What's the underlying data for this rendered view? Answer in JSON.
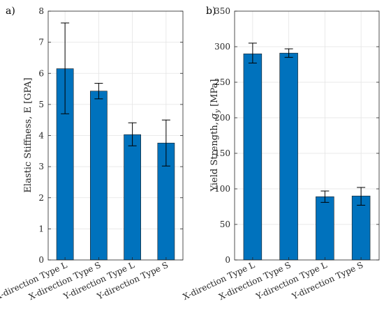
{
  "chart_data": [
    {
      "type": "bar",
      "panel_label": "a)",
      "categories": [
        "X-direction Type L",
        "X-direction Type S",
        "Y-direction Type L",
        "Y-direction Type S"
      ],
      "values": [
        6.15,
        5.43,
        4.03,
        3.76
      ],
      "error_low": [
        4.7,
        5.18,
        3.67,
        3.02
      ],
      "error_high": [
        7.62,
        5.68,
        4.41,
        4.5
      ],
      "ylabel": "Elastic Stiffness, E [GPA]",
      "ylim": [
        0,
        8
      ],
      "yticks": [
        0,
        1,
        2,
        3,
        4,
        5,
        6,
        7,
        8
      ],
      "grid": true,
      "bar_color": "#0072BD"
    },
    {
      "type": "bar",
      "panel_label": "b)",
      "categories": [
        "X-direction Type L",
        "X-direction Type S",
        "Y-direction Type L",
        "Y-direction Type S"
      ],
      "values": [
        290,
        291,
        89,
        90
      ],
      "error_low": [
        277,
        285,
        81,
        77
      ],
      "error_high": [
        305,
        297,
        97,
        102
      ],
      "ylabel_prefix": "Yield Strength, ",
      "ylabel_symbol": "σ",
      "ylabel_sub": "y",
      "ylabel_unit": " [MPa]",
      "ylim": [
        0,
        350
      ],
      "yticks": [
        0,
        50,
        100,
        150,
        200,
        250,
        300,
        350
      ],
      "grid": true,
      "bar_color": "#0072BD"
    }
  ]
}
